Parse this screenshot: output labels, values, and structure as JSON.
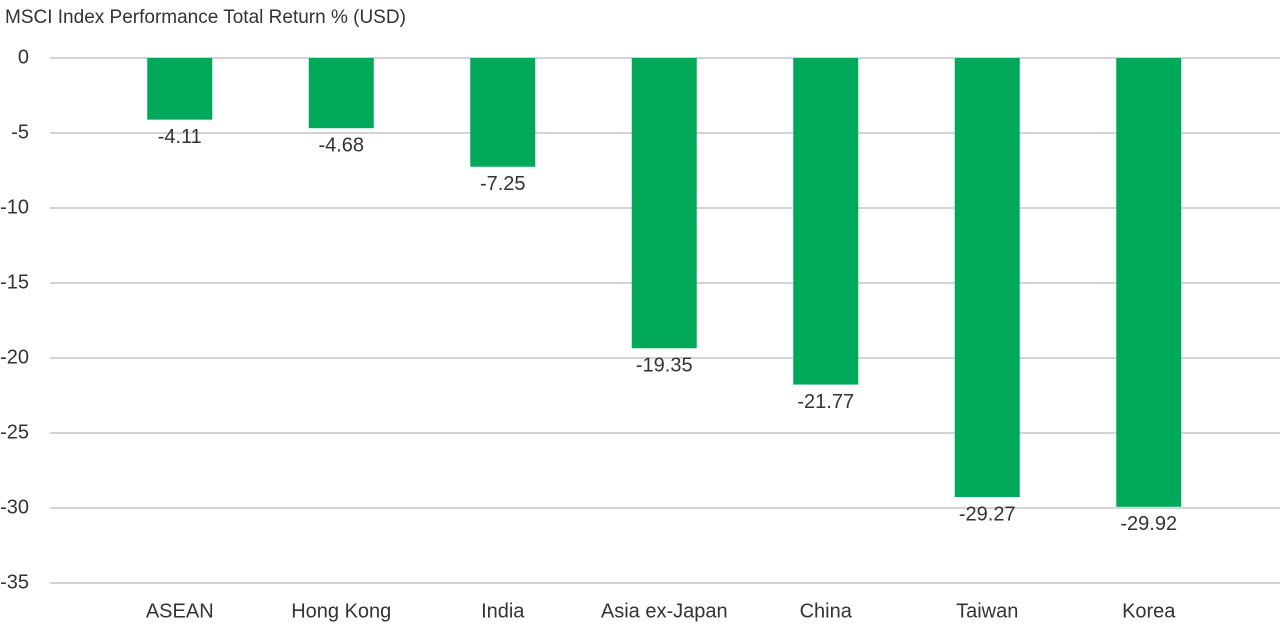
{
  "chart_data": {
    "type": "bar",
    "title": "MSCI Index Performance Total Return % (USD)",
    "categories": [
      "ASEAN",
      "Hong Kong",
      "India",
      "Asia ex-Japan",
      "China",
      "Taiwan",
      "Korea"
    ],
    "values": [
      -4.11,
      -4.68,
      -7.25,
      -19.35,
      -21.77,
      -29.27,
      -29.92
    ],
    "color": "#00a85a",
    "ylim": [
      -35,
      0
    ],
    "yticks": [
      0,
      -5,
      -10,
      -15,
      -20,
      -25,
      -30,
      -35
    ],
    "grid": true
  }
}
